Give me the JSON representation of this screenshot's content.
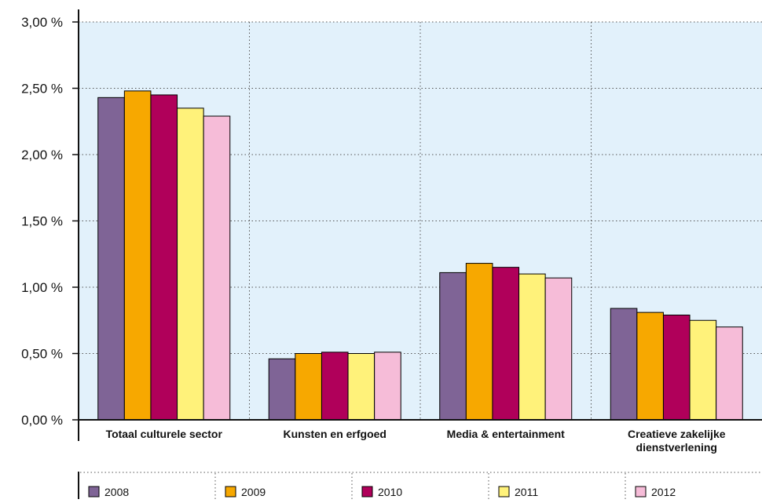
{
  "chart_data": {
    "type": "bar",
    "categories": [
      [
        "Totaal culturele sector"
      ],
      [
        "Kunsten en erfgoed"
      ],
      [
        "Media & entertainment"
      ],
      [
        "Creatieve zakelijke",
        "dienstverlening"
      ]
    ],
    "series": [
      {
        "name": "2008",
        "color": "#7f6496",
        "values": [
          2.43,
          0.46,
          1.11,
          0.84
        ]
      },
      {
        "name": "2009",
        "color": "#f7a800",
        "values": [
          2.48,
          0.5,
          1.18,
          0.81
        ]
      },
      {
        "name": "2010",
        "color": "#b0005a",
        "values": [
          2.45,
          0.51,
          1.15,
          0.79
        ]
      },
      {
        "name": "2011",
        "color": "#fff27a",
        "values": [
          2.35,
          0.5,
          1.1,
          0.75
        ]
      },
      {
        "name": "2012",
        "color": "#f6bcd8",
        "values": [
          2.29,
          0.51,
          1.07,
          0.7
        ]
      }
    ],
    "yticks": [
      "0,00 %",
      "0,50 %",
      "1,00 %",
      "1,50 %",
      "2,00 %",
      "2,50 %",
      "3,00 %"
    ],
    "ylim": [
      0,
      3
    ],
    "grid": true,
    "plot_background": "#e2f1fb",
    "legend_position": "bottom"
  }
}
